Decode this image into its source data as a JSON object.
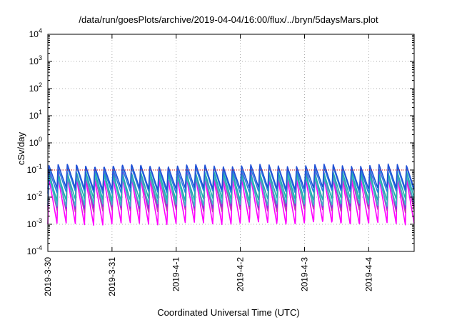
{
  "chart_data": {
    "type": "line",
    "title": "/data/run/goesPlots/archive/2019-04-04/16:00/flux/../bryn/5daysMars.plot",
    "xlabel": "Coordinated Universal Time (UTC)",
    "ylabel": "cSv/day",
    "y_scale": "log",
    "ylim": [
      0.0001,
      10000
    ],
    "y_ticks": [
      {
        "base": "10",
        "exp": "-4"
      },
      {
        "base": "10",
        "exp": "-3"
      },
      {
        "base": "10",
        "exp": "-2"
      },
      {
        "base": "10",
        "exp": "-1"
      },
      {
        "base": "10",
        "exp": "0"
      },
      {
        "base": "10",
        "exp": "1"
      },
      {
        "base": "10",
        "exp": "2"
      },
      {
        "base": "10",
        "exp": "3"
      },
      {
        "base": "10",
        "exp": "4"
      }
    ],
    "x_range": [
      "2019-03-30 00:00",
      "2019-04-04 17:00"
    ],
    "x_ticks": [
      "2019-3-30",
      "2019-3-31",
      "2019-4-1",
      "2019-4-2",
      "2019-4-3",
      "2019-4-4"
    ],
    "grid": true,
    "threshold_line": {
      "value": 0.1,
      "color": "#dd0000",
      "style": "dotted"
    },
    "series_style": "periodic sawtooth, approx. 7 peaks per day",
    "series": [
      {
        "color": "#1f4fd6",
        "peak": 0.15,
        "trough": 0.02
      },
      {
        "color": "#2a7fe0",
        "peak": 0.12,
        "trough": 0.015
      },
      {
        "color": "#20b2aa",
        "peak": 0.08,
        "trough": 0.008
      },
      {
        "color": "#3db8c8",
        "peak": 0.06,
        "trough": 0.005
      },
      {
        "color": "#8a2be2",
        "peak": 0.09,
        "trough": 0.004
      },
      {
        "color": "#c23fb0",
        "peak": 0.07,
        "trough": 0.003
      },
      {
        "color": "#ff00ff",
        "peak": 0.05,
        "trough": 0.001
      }
    ]
  }
}
